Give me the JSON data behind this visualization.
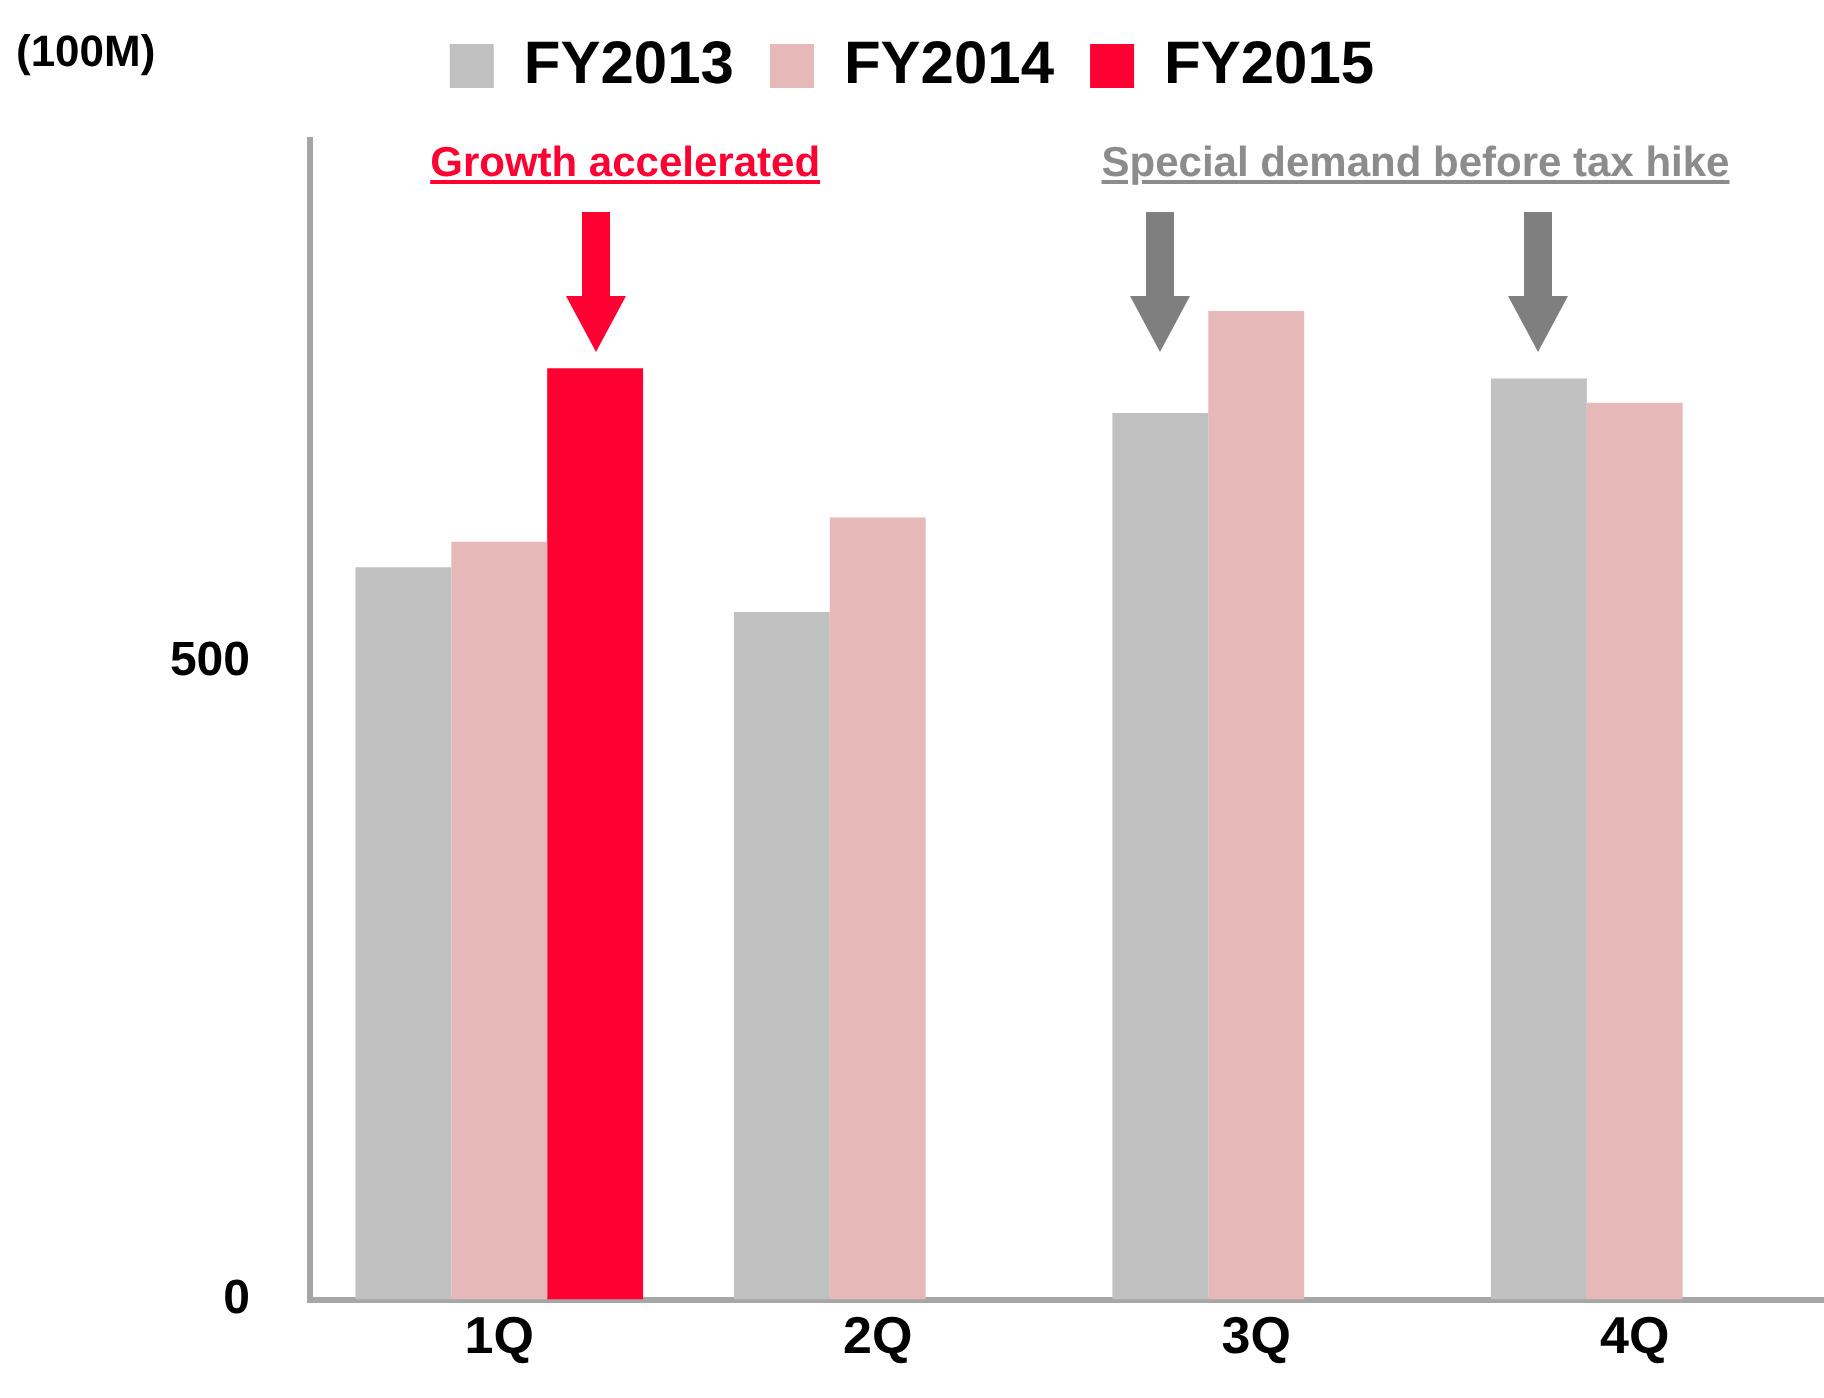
{
  "chart_data": {
    "type": "bar",
    "ylabel": "(100M)",
    "categories": [
      "1Q",
      "2Q",
      "3Q",
      "4Q"
    ],
    "series": [
      {
        "name": "FY2013",
        "color": "#c0c0c0",
        "values": [
          574,
          539,
          695,
          722
        ]
      },
      {
        "name": "FY2014",
        "color": "#e6b8b7",
        "values": [
          594,
          613,
          775,
          703
        ]
      },
      {
        "name": "FY2015",
        "color": "#ff0033",
        "values": [
          730,
          null,
          null,
          null
        ]
      }
    ],
    "ylim": [
      0,
      909
    ],
    "yticks": [
      0,
      500
    ],
    "grid": false,
    "legend": "top",
    "annotations": [
      "Growth accelerated",
      "Special demand before tax hike"
    ]
  }
}
